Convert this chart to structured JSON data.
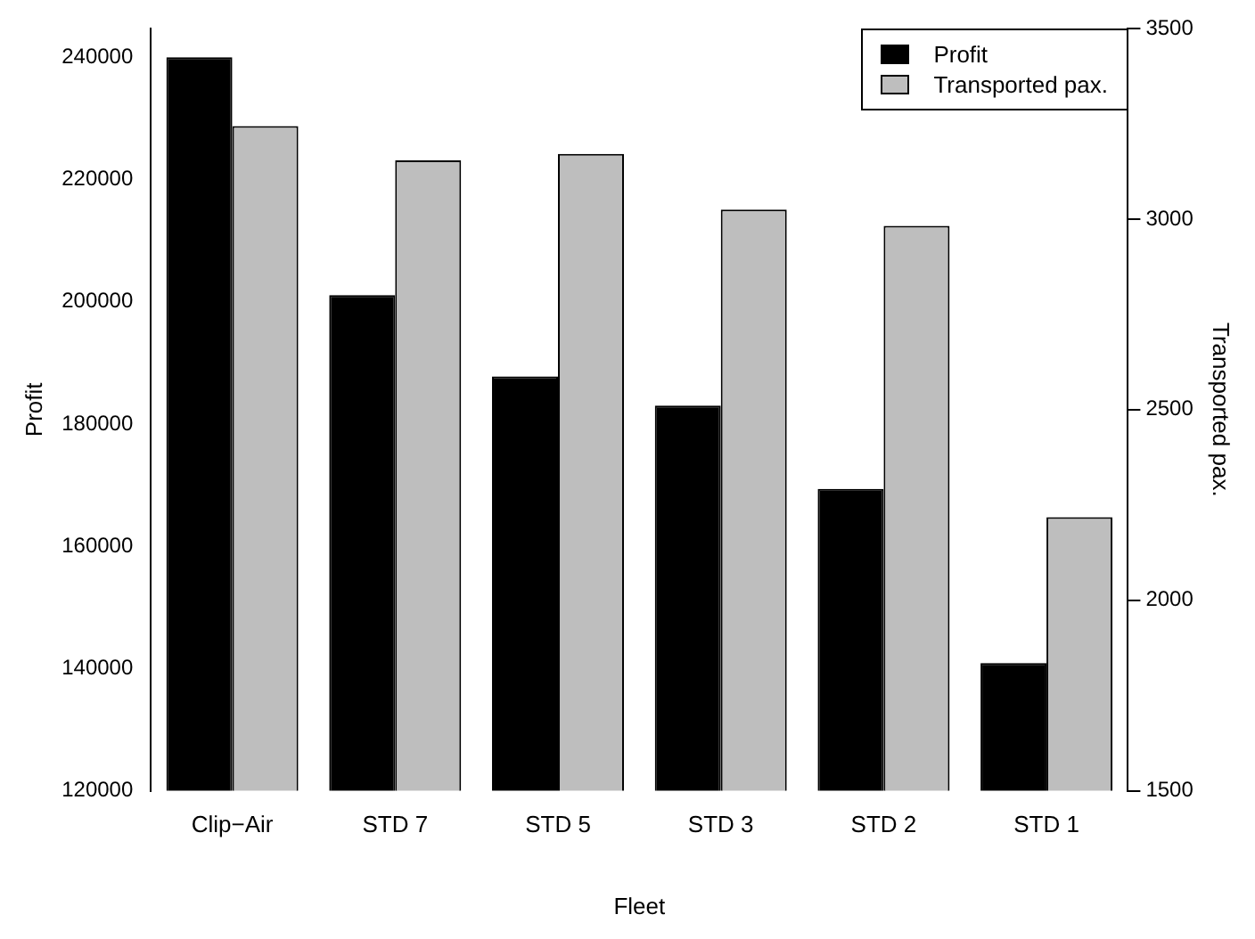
{
  "chart_data": {
    "type": "bar",
    "xlabel": "Fleet",
    "ylabel": "Profit",
    "y2label": "Transported pax.",
    "categories": [
      "Clip−Air",
      "STD 7",
      "STD 5",
      "STD 3",
      "STD 2",
      "STD 1"
    ],
    "series": [
      {
        "name": "Profit",
        "color": "#000000",
        "values": [
          240000,
          201100,
          187800,
          183000,
          169400,
          140900
        ]
      },
      {
        "name": "Transported pax.",
        "color": "#bebebe",
        "axis": "y2",
        "values": [
          3244,
          3154,
          3171,
          3025,
          2982,
          2218
        ]
      }
    ],
    "ylim": [
      120000,
      244700
    ],
    "yticks": [
      120000,
      140000,
      160000,
      180000,
      200000,
      220000,
      240000
    ],
    "y2lim": [
      1500,
      3500
    ],
    "y2ticks": [
      1500,
      2000,
      2500,
      3000,
      3500
    ],
    "grid": false,
    "legend": "top right"
  }
}
